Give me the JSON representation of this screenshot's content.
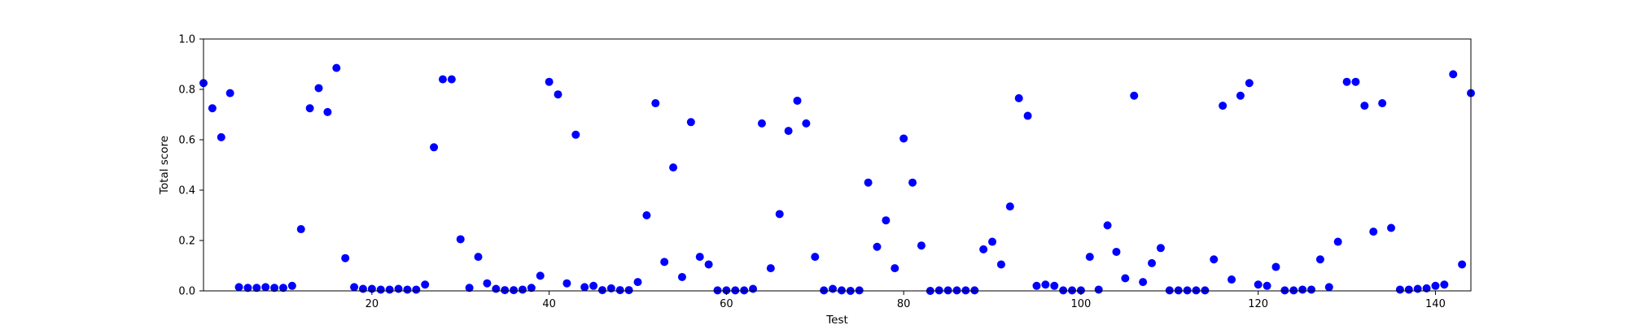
{
  "chart_data": {
    "type": "scatter",
    "title": "",
    "xlabel": "Test",
    "ylabel": "Total score",
    "xlim": [
      1,
      144
    ],
    "ylim": [
      0.0,
      1.0
    ],
    "xticks": [
      20,
      40,
      60,
      80,
      100,
      120,
      140
    ],
    "yticks": [
      0.0,
      0.2,
      0.4,
      0.6,
      0.8,
      1.0
    ],
    "grid": false,
    "marker_color": "#0000ff",
    "series": [
      {
        "x": [
          1,
          2,
          3,
          4,
          5,
          6,
          7,
          8,
          9,
          10,
          11,
          12,
          13,
          14,
          15,
          16,
          17,
          18,
          19,
          20,
          21,
          22,
          23,
          24,
          25,
          26,
          27,
          28,
          29,
          30,
          31,
          32,
          33,
          34,
          35,
          36,
          37,
          38,
          39,
          40,
          41,
          42,
          43,
          44,
          45,
          46,
          47,
          48,
          49,
          50,
          51,
          52,
          53,
          54,
          55,
          56,
          57,
          58,
          59,
          60,
          61,
          62,
          63,
          64,
          65,
          66,
          67,
          68,
          69,
          70,
          71,
          72,
          73,
          74,
          75,
          76,
          77,
          78,
          79,
          80,
          81,
          82,
          83,
          84,
          85,
          86,
          87,
          88,
          89,
          90,
          91,
          92,
          93,
          94,
          95,
          96,
          97,
          98,
          99,
          100,
          101,
          102,
          103,
          104,
          105,
          106,
          107,
          108,
          109,
          110,
          111,
          112,
          113,
          114,
          115,
          116,
          117,
          118,
          119,
          120,
          121,
          122,
          123,
          124,
          125,
          126,
          127,
          128,
          129,
          130,
          131,
          132,
          133,
          134,
          135,
          136,
          137,
          138,
          139,
          140,
          141,
          142,
          143,
          144
        ],
        "y": [
          0.825,
          0.725,
          0.61,
          0.785,
          0.015,
          0.012,
          0.012,
          0.015,
          0.012,
          0.012,
          0.02,
          0.245,
          0.725,
          0.805,
          0.71,
          0.885,
          0.13,
          0.015,
          0.008,
          0.008,
          0.005,
          0.005,
          0.008,
          0.005,
          0.005,
          0.025,
          0.57,
          0.84,
          0.84,
          0.205,
          0.012,
          0.135,
          0.03,
          0.008,
          0.003,
          0.003,
          0.005,
          0.012,
          0.06,
          0.83,
          0.78,
          0.03,
          0.62,
          0.015,
          0.02,
          0.003,
          0.01,
          0.003,
          0.003,
          0.035,
          0.3,
          0.745,
          0.115,
          0.49,
          0.055,
          0.67,
          0.135,
          0.105,
          0.002,
          0.002,
          0.002,
          0.002,
          0.008,
          0.665,
          0.09,
          0.305,
          0.635,
          0.755,
          0.665,
          0.135,
          0.002,
          0.008,
          0.002,
          0.0,
          0.002,
          0.43,
          0.175,
          0.28,
          0.09,
          0.605,
          0.43,
          0.18,
          0.0,
          0.002,
          0.002,
          0.002,
          0.002,
          0.002,
          0.165,
          0.195,
          0.105,
          0.335,
          0.765,
          0.695,
          0.02,
          0.025,
          0.02,
          0.002,
          0.002,
          0.002,
          0.135,
          0.005,
          0.26,
          0.155,
          0.05,
          0.775,
          0.035,
          0.11,
          0.17,
          0.002,
          0.002,
          0.002,
          0.002,
          0.002,
          0.125,
          0.735,
          0.045,
          0.775,
          0.825,
          0.025,
          0.02,
          0.095,
          0.002,
          0.002,
          0.005,
          0.005,
          0.125,
          0.015,
          0.195,
          0.83,
          0.83,
          0.735,
          0.235,
          0.745,
          0.25,
          0.005,
          0.005,
          0.008,
          0.01,
          0.02,
          0.025,
          0.86,
          0.105,
          0.785
        ]
      }
    ]
  }
}
